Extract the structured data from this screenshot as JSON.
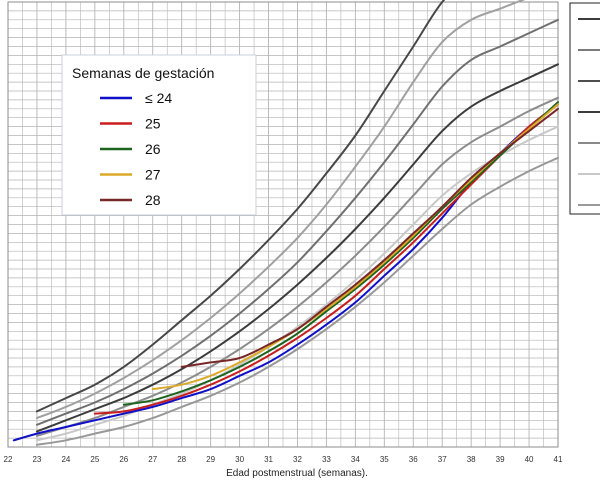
{
  "chart_data": {
    "type": "line",
    "title": "",
    "xlabel": "Edad postmenstrual (semanas).",
    "ylabel": "",
    "xlim": [
      22,
      41
    ],
    "ylim": [
      0,
      100
    ],
    "x_ticks": [
      "22",
      "23",
      "24",
      "25",
      "26",
      "27",
      "28",
      "29",
      "30",
      "31",
      "32",
      "33",
      "34",
      "35",
      "36",
      "37",
      "38",
      "39",
      "40",
      "41"
    ],
    "grid": true,
    "legend": {
      "title": "Semanas de gestación",
      "placement": "top-left",
      "entries": [
        {
          "label": "≤ 24",
          "color": "#1010c8"
        },
        {
          "label": "25",
          "color": "#c81e1e"
        },
        {
          "label": "26",
          "color": "#1e641e"
        },
        {
          "label": "27",
          "color": "#dcaa28"
        },
        {
          "label": "28",
          "color": "#782828"
        }
      ]
    },
    "right_legend_swatches": [
      "#3c3c3c",
      "#7a7a7a",
      "#4e4e4e",
      "#3c3c3c",
      "#8a8a8a",
      "#c8c8c8",
      "#9a9a9a"
    ],
    "reference_series": [
      {
        "color": "#484848",
        "width": 2,
        "x": [
          23,
          24,
          25,
          26,
          27,
          28,
          29,
          30,
          31,
          32,
          33,
          34,
          35,
          36,
          37,
          38,
          39,
          40,
          41
        ],
        "y": [
          8,
          11,
          14,
          18,
          23,
          28.5,
          34,
          40,
          46.5,
          53.5,
          61.5,
          70,
          80,
          90,
          100,
          106,
          108,
          110,
          112
        ]
      },
      {
        "color": "#a0a0a0",
        "width": 2,
        "x": [
          23,
          24,
          25,
          26,
          27,
          28,
          29,
          30,
          31,
          32,
          33,
          34,
          35,
          36,
          37,
          38,
          39,
          40,
          41
        ],
        "y": [
          6.5,
          9,
          12,
          15.5,
          19.5,
          24,
          29,
          34.5,
          40.5,
          47,
          54.5,
          63,
          72,
          82,
          91,
          96,
          98.5,
          101,
          103
        ]
      },
      {
        "color": "#707070",
        "width": 2,
        "x": [
          23,
          24,
          25,
          26,
          27,
          28,
          29,
          30,
          31,
          32,
          33,
          34,
          35,
          36,
          37,
          38,
          39,
          40,
          41
        ],
        "y": [
          5,
          7.5,
          10,
          13,
          16.5,
          20.5,
          25,
          30,
          35.5,
          41.5,
          48.5,
          56,
          64,
          72.5,
          81,
          87,
          90,
          93,
          96
        ]
      },
      {
        "color": "#3c3c3c",
        "width": 2,
        "x": [
          23,
          24,
          25,
          26,
          27,
          28,
          29,
          30,
          31,
          32,
          33,
          34,
          35,
          36,
          37,
          38,
          39,
          40,
          41
        ],
        "y": [
          3.5,
          6,
          8.5,
          11,
          14,
          17.5,
          21.5,
          26,
          31,
          36.5,
          42.5,
          49,
          56,
          63.5,
          71,
          76.5,
          80,
          83,
          86
        ]
      },
      {
        "color": "#8c8c8c",
        "width": 2,
        "x": [
          23,
          24,
          25,
          26,
          27,
          28,
          29,
          30,
          31,
          32,
          33,
          34,
          35,
          36,
          37,
          38,
          39,
          40,
          41
        ],
        "y": [
          2.5,
          4.5,
          6.5,
          9,
          11.5,
          14.5,
          18,
          22,
          26.5,
          31.5,
          37,
          43,
          49.5,
          56.5,
          63.5,
          68.5,
          72,
          75.5,
          78.5
        ]
      },
      {
        "color": "#c8c8c8",
        "width": 2,
        "x": [
          23,
          24,
          25,
          26,
          27,
          28,
          29,
          30,
          31,
          32,
          33,
          34,
          35,
          36,
          37,
          38,
          39,
          40,
          41
        ],
        "y": [
          1.5,
          3,
          5,
          7,
          9.5,
          12,
          15,
          18.5,
          22.5,
          27,
          32,
          37.5,
          43.5,
          50,
          56.5,
          61.5,
          65.5,
          69,
          72
        ]
      },
      {
        "color": "#989898",
        "width": 2,
        "x": [
          23,
          24,
          25,
          26,
          27,
          28,
          29,
          30,
          31,
          32,
          33,
          34,
          35,
          36,
          37,
          38,
          39,
          40,
          41
        ],
        "y": [
          0.5,
          1.5,
          3,
          4.5,
          6.5,
          9,
          11.5,
          14.5,
          18,
          22,
          26.5,
          31.5,
          37,
          43,
          49,
          54.5,
          58.5,
          62,
          65
        ]
      }
    ],
    "series": [
      {
        "color": "#1010c8",
        "width": 2,
        "x": [
          22.2,
          23,
          24,
          25,
          26,
          27,
          28,
          29,
          30,
          31,
          32,
          33,
          34,
          35,
          36,
          37,
          38,
          39,
          40,
          41
        ],
        "y": [
          1.5,
          3,
          4.5,
          6,
          7.5,
          9,
          11,
          13,
          16,
          19,
          23,
          27.5,
          32.5,
          38.5,
          44.5,
          51.5,
          59.5,
          66,
          72,
          77
        ]
      },
      {
        "color": "#c81e1e",
        "width": 2,
        "x": [
          25,
          26,
          27,
          28,
          29,
          30,
          31,
          32,
          33,
          34,
          35,
          36,
          37,
          38,
          39,
          40,
          41
        ],
        "y": [
          7.5,
          8,
          9.5,
          11.5,
          14,
          17,
          20.5,
          24.5,
          29,
          34,
          40,
          46,
          52.5,
          59,
          65.5,
          72,
          77
        ]
      },
      {
        "color": "#1e641e",
        "width": 2,
        "x": [
          26,
          27,
          28,
          29,
          30,
          31,
          32,
          33,
          34,
          35,
          36,
          37,
          38,
          39,
          40,
          41
        ],
        "y": [
          9.5,
          10.5,
          12.5,
          15,
          18,
          21.5,
          25.5,
          30.5,
          35.5,
          41,
          47,
          53.5,
          59.5,
          65.5,
          71.5,
          77.5
        ]
      },
      {
        "color": "#dcaa28",
        "width": 2,
        "x": [
          27,
          28,
          29,
          30,
          31,
          32,
          33,
          34,
          35,
          36,
          37,
          38,
          39,
          40,
          41
        ],
        "y": [
          13,
          14,
          16,
          19,
          22.5,
          26.5,
          31,
          36,
          41.5,
          47.5,
          54,
          60,
          66,
          71.5,
          77
        ]
      },
      {
        "color": "#782828",
        "width": 2,
        "x": [
          28,
          29,
          30,
          31,
          32,
          33,
          34,
          35,
          36,
          37,
          38,
          39,
          40,
          41
        ],
        "y": [
          18,
          19,
          20,
          23,
          26.5,
          31.5,
          36.5,
          42,
          48,
          54,
          60.5,
          66,
          71,
          76
        ]
      }
    ]
  }
}
